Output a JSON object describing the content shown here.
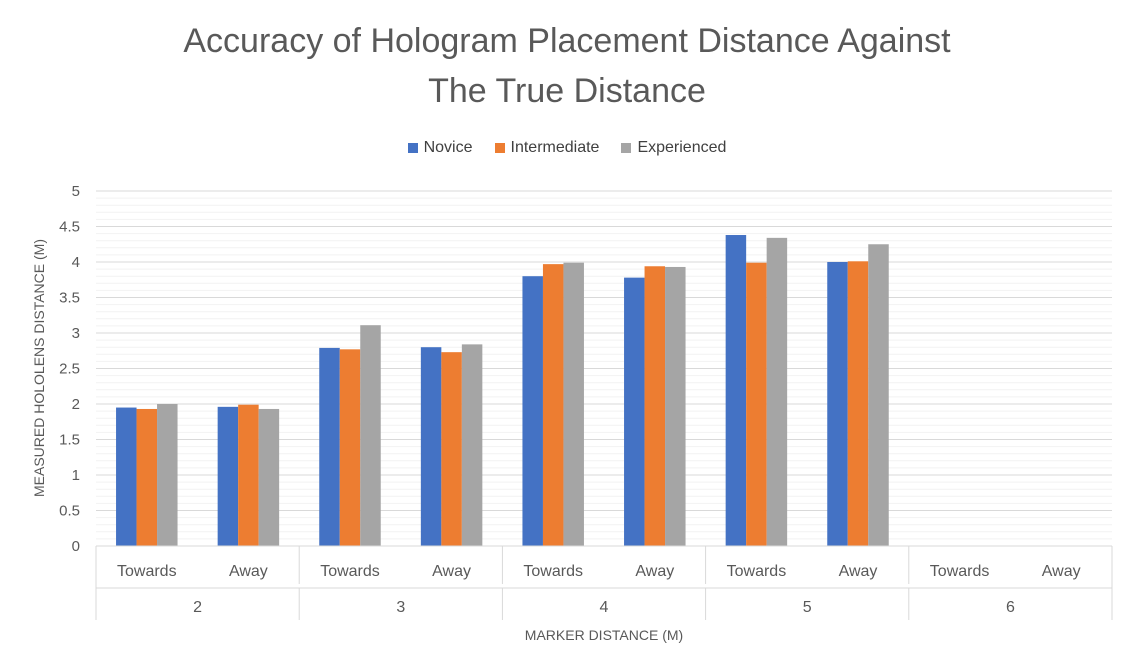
{
  "chart_data": {
    "type": "bar",
    "title_line1": "Accuracy of Hologram Placement Distance Against",
    "title_line2": "The True Distance",
    "xlabel": "MARKER DISTANCE (M)",
    "ylabel": "MEASURED HOLOLENS DISTANCE (M)",
    "ylim": [
      0,
      5
    ],
    "yticks": [
      0,
      0.5,
      1,
      1.5,
      2,
      2.5,
      3,
      3.5,
      4,
      4.5,
      5
    ],
    "ytick_labels": [
      "0",
      "0.5",
      "1",
      "1.5",
      "2",
      "2.5",
      "3",
      "3.5",
      "4",
      "4.5",
      "5"
    ],
    "grid": true,
    "legend_position": "top",
    "groups": [
      "2",
      "3",
      "4",
      "5",
      "6"
    ],
    "subcategories": [
      "Towards",
      "Away"
    ],
    "categories": [
      "2 Towards",
      "2 Away",
      "3 Towards",
      "3 Away",
      "4 Towards",
      "4 Away",
      "5 Towards",
      "5 Away",
      "6 Towards",
      "6 Away"
    ],
    "series": [
      {
        "name": "Novice",
        "color": "#4472C4",
        "values": [
          1.95,
          1.96,
          2.79,
          2.8,
          3.8,
          3.78,
          4.38,
          4.0,
          null,
          null
        ]
      },
      {
        "name": "Intermediate",
        "color": "#ED7D31",
        "values": [
          1.93,
          1.99,
          2.77,
          2.73,
          3.97,
          3.94,
          3.99,
          4.01,
          null,
          null
        ]
      },
      {
        "name": "Experienced",
        "color": "#A5A5A5",
        "values": [
          2.0,
          1.93,
          3.11,
          2.84,
          3.99,
          3.93,
          4.34,
          4.25,
          null,
          null
        ]
      }
    ]
  }
}
